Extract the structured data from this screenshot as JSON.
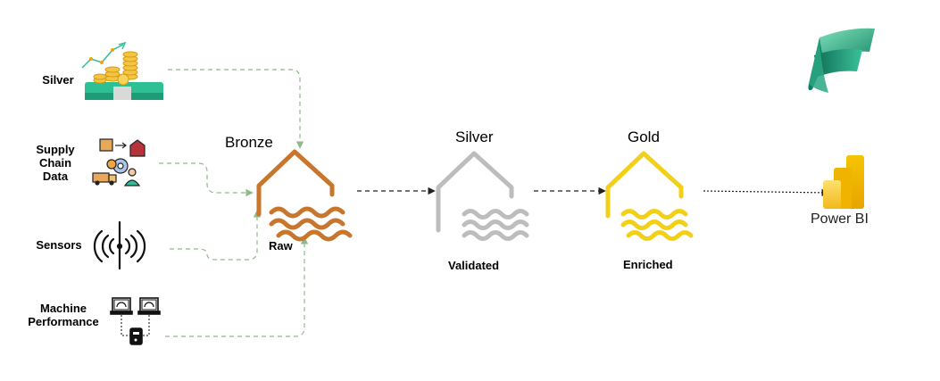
{
  "sources": [
    {
      "label": "Silver",
      "icon": "coins-chart-icon"
    },
    {
      "label": "Supply Chain Data",
      "icon": "supply-chain-icon"
    },
    {
      "label": "Sensors",
      "icon": "sensor-signal-icon"
    },
    {
      "label": "Machine Performance",
      "icon": "machine-network-icon"
    }
  ],
  "layers": [
    {
      "title": "Bronze",
      "caption": "Raw",
      "color": "#C8762B"
    },
    {
      "title": "Silver",
      "caption": "Validated",
      "color": "#BDBDBD"
    },
    {
      "title": "Gold",
      "caption": "Enriched",
      "color": "#F2D018"
    }
  ],
  "targets": {
    "fabric_logo": "fabric-logo-icon",
    "powerbi_label": "Power BI"
  },
  "colors": {
    "feed_line": "#8FB98A",
    "flow_line": "#222222"
  }
}
